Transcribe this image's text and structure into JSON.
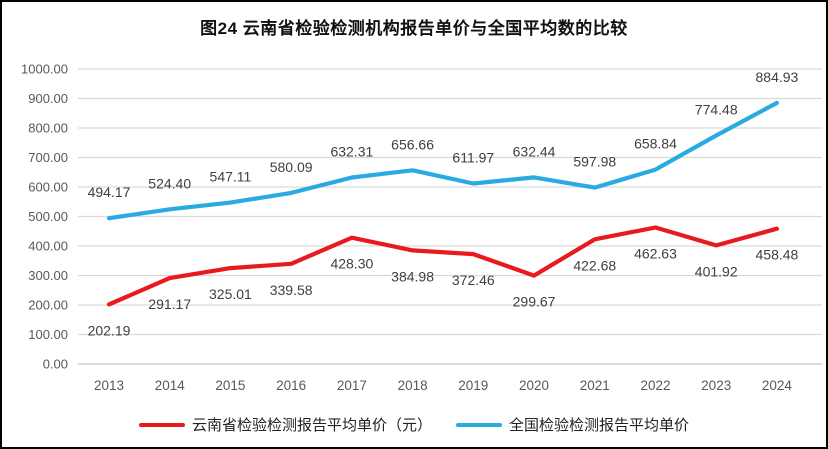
{
  "chart_data": {
    "type": "line",
    "title": "图24 云南省检验检测机构报告单价与全国平均数的比较",
    "x": [
      "2013",
      "2014",
      "2015",
      "2016",
      "2017",
      "2018",
      "2019",
      "2020",
      "2021",
      "2022",
      "2023",
      "2024"
    ],
    "series": [
      {
        "name": "云南省检验检测报告平均单价（元）",
        "color": "#e8191f",
        "values": [
          202.19,
          291.17,
          325.01,
          339.58,
          428.3,
          384.98,
          372.46,
          299.67,
          422.68,
          462.63,
          401.92,
          458.48
        ],
        "label_position": "below"
      },
      {
        "name": "全国检验检测报告平均单价",
        "color": "#29abe2",
        "values": [
          494.17,
          524.4,
          547.11,
          580.09,
          632.31,
          656.66,
          611.97,
          632.44,
          597.98,
          658.84,
          774.48,
          884.93
        ],
        "label_position": "above"
      }
    ],
    "ylim": [
      0,
      1000
    ],
    "y_tick_values": [
      0,
      100,
      200,
      300,
      400,
      500,
      600,
      700,
      800,
      900,
      1000
    ],
    "y_tick_labels": [
      "0.00",
      "100.00",
      "200.00",
      "300.00",
      "400.00",
      "500.00",
      "600.00",
      "700.00",
      "800.00",
      "900.00",
      "1000.00"
    ],
    "grid": "horizontal-only",
    "legend_position": "bottom",
    "colors": {
      "grid_line": "#d9d9d9",
      "zero_line": "#c6c6c6",
      "axis_tick_text": "#595959",
      "data_label_text": "#404040"
    }
  }
}
